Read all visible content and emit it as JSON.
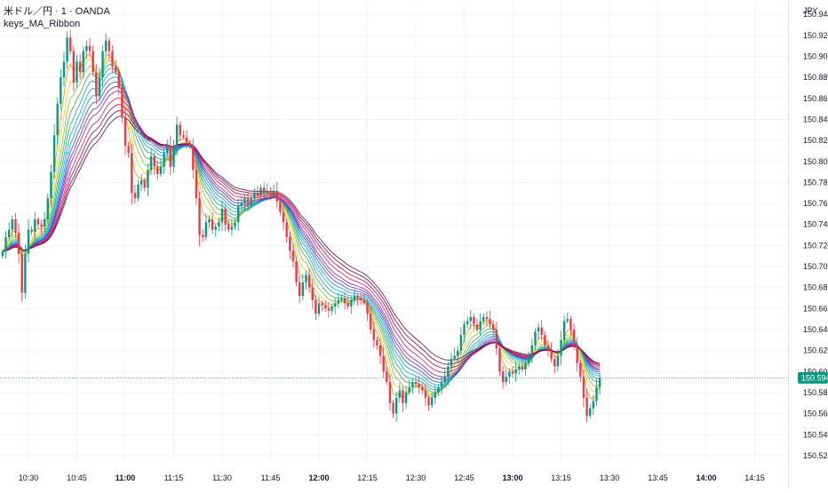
{
  "legend": {
    "symbol_line": "米ドル／円 · 1 · OANDA",
    "indicator_name": "keys_MA_Ribbon"
  },
  "price_axis": {
    "currency": "JPY",
    "current_price_label": "150.594"
  },
  "colors": {
    "up": "#089981",
    "down": "#f23645",
    "price_line": "#089981",
    "grid": "#f0f3fa",
    "ribbon": [
      "#ff9800",
      "#cddc39",
      "#8bc34a",
      "#4caf50",
      "#26a69a",
      "#00bcd4",
      "#2196f3",
      "#3f51b5",
      "#673ab7",
      "#9c27b0",
      "#e91e63",
      "#ad1457",
      "#880e4f",
      "#6a1b4d"
    ]
  },
  "chart_data": {
    "type": "candlestick",
    "y_ticks": [
      "150.520",
      "150.540",
      "150.560",
      "150.580",
      "150.600",
      "150.620",
      "150.640",
      "150.660",
      "150.680",
      "150.700",
      "150.720",
      "150.740",
      "150.760",
      "150.780",
      "150.800",
      "150.820",
      "150.840",
      "150.860",
      "150.880",
      "150.900",
      "150.920",
      "150.940"
    ],
    "ylim": [
      150.514,
      150.952
    ],
    "x_labels": [
      {
        "label": "10:30",
        "minute": 630,
        "bold": false
      },
      {
        "label": "10:45",
        "minute": 645,
        "bold": false
      },
      {
        "label": "11:00",
        "minute": 660,
        "bold": true
      },
      {
        "label": "11:15",
        "minute": 675,
        "bold": false
      },
      {
        "label": "11:30",
        "minute": 690,
        "bold": false
      },
      {
        "label": "11:45",
        "minute": 705,
        "bold": false
      },
      {
        "label": "12:00",
        "minute": 720,
        "bold": true
      },
      {
        "label": "12:15",
        "minute": 735,
        "bold": false
      },
      {
        "label": "12:30",
        "minute": 750,
        "bold": false
      },
      {
        "label": "12:45",
        "minute": 765,
        "bold": false
      },
      {
        "label": "13:00",
        "minute": 780,
        "bold": true
      },
      {
        "label": "13:15",
        "minute": 795,
        "bold": false
      },
      {
        "label": "13:30",
        "minute": 810,
        "bold": false
      },
      {
        "label": "13:45",
        "minute": 825,
        "bold": false
      },
      {
        "label": "14:00",
        "minute": 840,
        "bold": true
      },
      {
        "label": "14:15",
        "minute": 855,
        "bold": false
      }
    ],
    "x_start_minute": 622,
    "minutes_per_bar": 1,
    "close": [
      150.714,
      150.728,
      150.735,
      150.745,
      150.732,
      150.712,
      150.675,
      150.712,
      150.735,
      150.733,
      150.745,
      150.74,
      150.738,
      150.745,
      150.765,
      150.79,
      150.825,
      150.855,
      150.88,
      150.895,
      150.918,
      150.905,
      150.875,
      150.895,
      150.885,
      150.905,
      150.91,
      150.905,
      150.885,
      150.862,
      150.88,
      150.905,
      150.915,
      150.905,
      150.89,
      150.885,
      150.87,
      150.842,
      150.815,
      150.808,
      150.77,
      150.765,
      150.778,
      150.782,
      150.775,
      150.792,
      150.805,
      150.795,
      150.788,
      150.795,
      150.808,
      150.815,
      150.795,
      150.815,
      150.835,
      150.825,
      150.823,
      150.818,
      150.815,
      150.792,
      150.765,
      150.73,
      150.728,
      150.742,
      150.745,
      150.735,
      150.738,
      150.742,
      150.755,
      150.74,
      150.735,
      150.738,
      150.742,
      150.758,
      150.76,
      150.765,
      150.758,
      150.765,
      150.77,
      150.768,
      150.775,
      150.77,
      150.772,
      150.768,
      150.772,
      150.762,
      150.752,
      150.742,
      150.728,
      150.715,
      150.705,
      150.685,
      150.672,
      150.685,
      150.692,
      150.68,
      150.668,
      150.655,
      150.665,
      150.663,
      150.66,
      150.658,
      150.662,
      150.665,
      150.668,
      150.67,
      150.665,
      150.662,
      150.668,
      150.672,
      150.67,
      150.668,
      150.665,
      150.655,
      150.64,
      150.63,
      150.625,
      150.615,
      150.6,
      150.59,
      150.57,
      150.56,
      150.575,
      150.582,
      150.57,
      150.58,
      150.585,
      150.59,
      150.588,
      150.585,
      150.582,
      150.575,
      150.568,
      150.575,
      150.58,
      150.585,
      150.59,
      150.595,
      150.605,
      150.612,
      150.615,
      150.62,
      150.635,
      150.645,
      150.648,
      150.652,
      150.645,
      150.64,
      150.648,
      150.652,
      150.65,
      150.645,
      150.64,
      150.622,
      150.6,
      150.59,
      150.595,
      150.6,
      150.598,
      150.602,
      150.605,
      150.602,
      150.608,
      150.615,
      150.625,
      150.638,
      150.642,
      150.635,
      150.625,
      150.62,
      150.612,
      150.605,
      150.615,
      150.63,
      150.648,
      150.65,
      150.64,
      150.625,
      150.608,
      150.595,
      150.575,
      150.558,
      150.565,
      150.572,
      150.585,
      150.594
    ]
  }
}
